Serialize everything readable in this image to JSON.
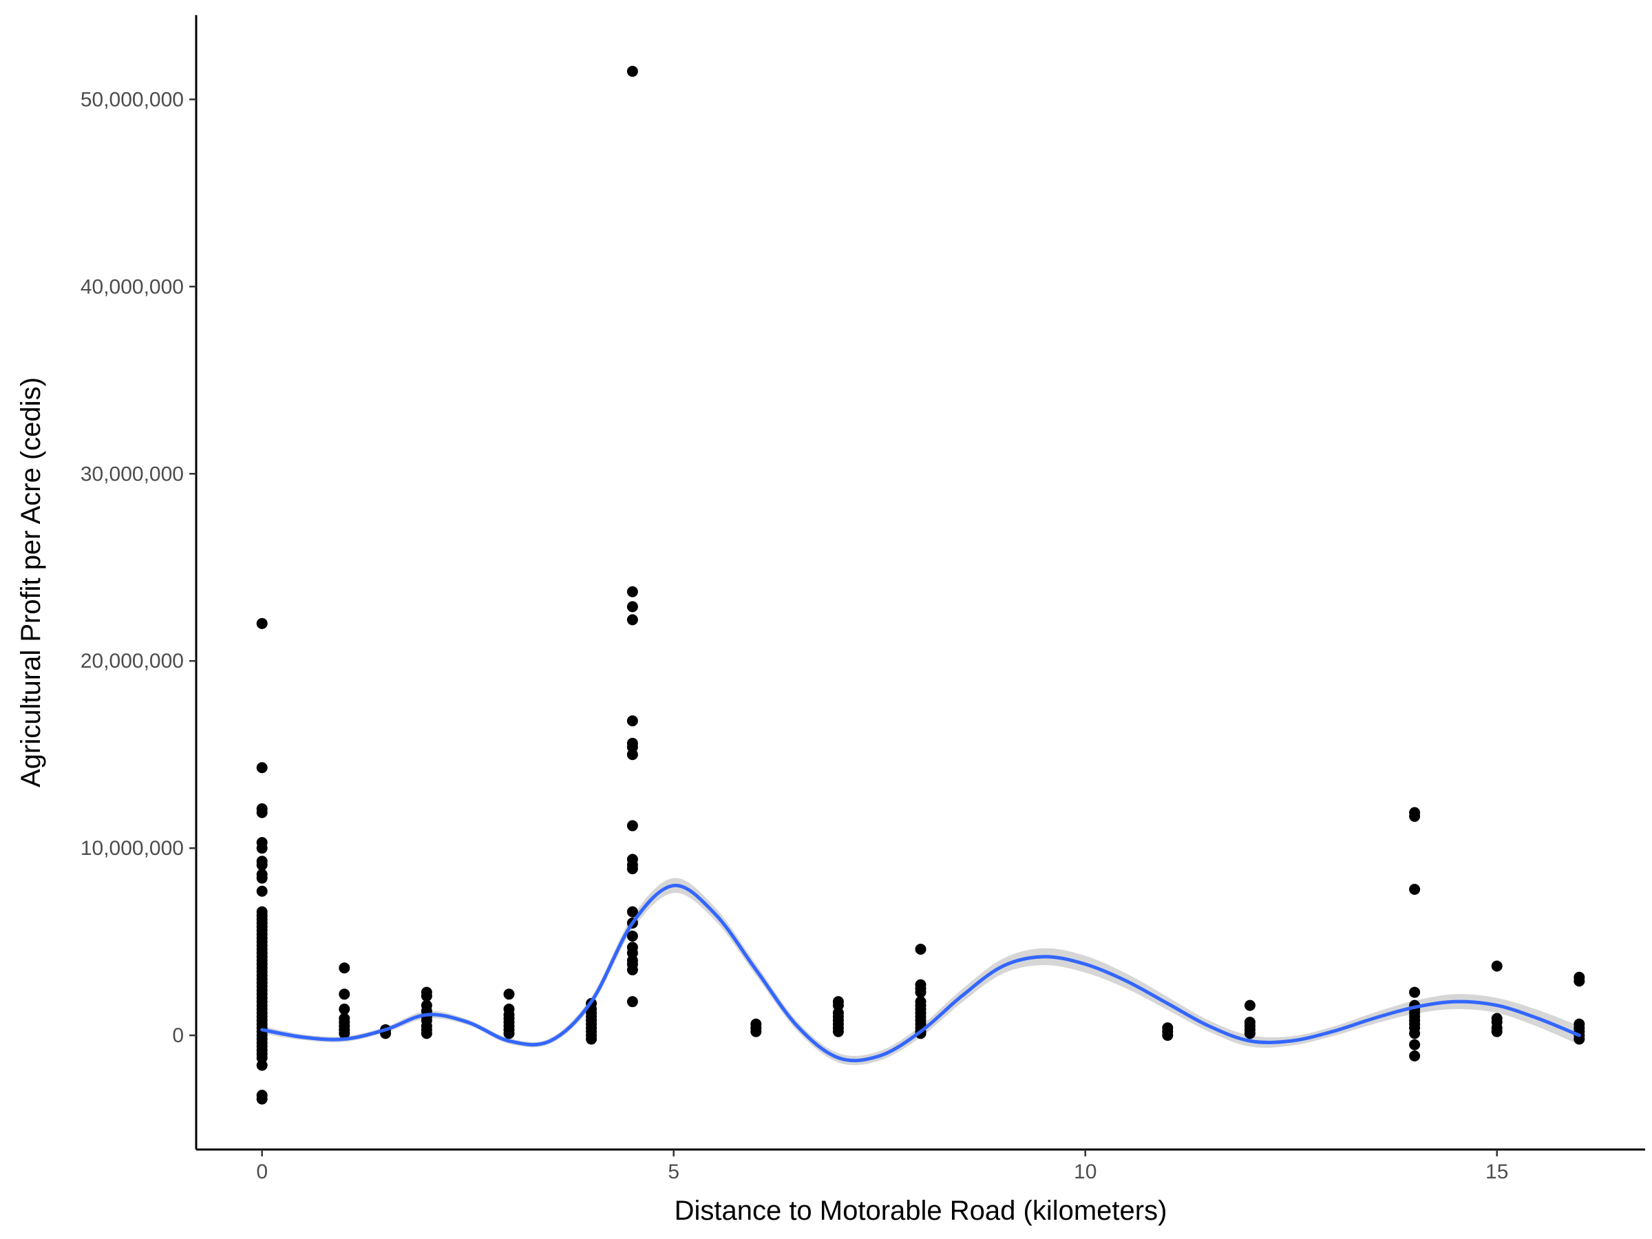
{
  "chart_data": {
    "type": "scatter",
    "title": "",
    "xlabel": "Distance to Motorable Road (kilometers)",
    "ylabel": "Agricultural Profit per Acre (cedis)",
    "xlim": [
      -0.8,
      16.8
    ],
    "ylim": [
      -6100000,
      54500000
    ],
    "x_ticks": [
      0,
      5,
      10,
      15
    ],
    "x_tick_labels": [
      "0",
      "5",
      "10",
      "15"
    ],
    "y_ticks": [
      0,
      10000000,
      20000000,
      30000000,
      40000000,
      50000000
    ],
    "y_tick_labels": [
      "0",
      "10,000,000",
      "20,000,000",
      "30,000,000",
      "40,000,000",
      "50,000,000"
    ],
    "grid": false,
    "legend": "none",
    "colors": {
      "points": "#000000",
      "smooth_line": "#3366ff",
      "confidence_band": "#999999"
    },
    "series": [
      {
        "kind": "points",
        "points": [
          [
            0,
            22000000
          ],
          [
            0,
            14300000
          ],
          [
            0,
            12100000
          ],
          [
            0,
            11900000
          ],
          [
            0,
            10300000
          ],
          [
            0,
            10000000
          ],
          [
            0,
            9300000
          ],
          [
            0,
            9100000
          ],
          [
            0,
            8600000
          ],
          [
            0,
            8400000
          ],
          [
            0,
            7700000
          ],
          [
            0,
            6600000
          ],
          [
            0,
            6400000
          ],
          [
            0,
            6200000
          ],
          [
            0,
            6000000
          ],
          [
            0,
            5800000
          ],
          [
            0,
            5600000
          ],
          [
            0,
            5400000
          ],
          [
            0,
            5200000
          ],
          [
            0,
            5000000
          ],
          [
            0,
            4800000
          ],
          [
            0,
            4600000
          ],
          [
            0,
            4400000
          ],
          [
            0,
            4200000
          ],
          [
            0,
            4000000
          ],
          [
            0,
            3800000
          ],
          [
            0,
            3600000
          ],
          [
            0,
            3400000
          ],
          [
            0,
            3200000
          ],
          [
            0,
            3000000
          ],
          [
            0,
            2800000
          ],
          [
            0,
            2600000
          ],
          [
            0,
            2400000
          ],
          [
            0,
            2200000
          ],
          [
            0,
            2000000
          ],
          [
            0,
            1800000
          ],
          [
            0,
            1600000
          ],
          [
            0,
            1400000
          ],
          [
            0,
            1200000
          ],
          [
            0,
            1000000
          ],
          [
            0,
            800000
          ],
          [
            0,
            600000
          ],
          [
            0,
            400000
          ],
          [
            0,
            200000
          ],
          [
            0,
            0
          ],
          [
            0,
            -200000
          ],
          [
            0,
            -400000
          ],
          [
            0,
            -600000
          ],
          [
            0,
            -800000
          ],
          [
            0,
            -1000000
          ],
          [
            0,
            -1200000
          ],
          [
            0,
            -1600000
          ],
          [
            0,
            -3200000
          ],
          [
            0,
            -3400000
          ],
          [
            1,
            3600000
          ],
          [
            1,
            2200000
          ],
          [
            1,
            1400000
          ],
          [
            1,
            900000
          ],
          [
            1,
            700000
          ],
          [
            1,
            500000
          ],
          [
            1,
            300000
          ],
          [
            1,
            100000
          ],
          [
            1.5,
            300000
          ],
          [
            1.5,
            100000
          ],
          [
            2,
            2300000
          ],
          [
            2,
            2100000
          ],
          [
            2,
            1600000
          ],
          [
            2,
            1300000
          ],
          [
            2,
            1000000
          ],
          [
            2,
            800000
          ],
          [
            2,
            500000
          ],
          [
            2,
            300000
          ],
          [
            2,
            100000
          ],
          [
            3,
            2200000
          ],
          [
            3,
            1400000
          ],
          [
            3,
            1100000
          ],
          [
            3,
            900000
          ],
          [
            3,
            700000
          ],
          [
            3,
            500000
          ],
          [
            3,
            300000
          ],
          [
            3,
            100000
          ],
          [
            4,
            1700000
          ],
          [
            4,
            1400000
          ],
          [
            4,
            1200000
          ],
          [
            4,
            1000000
          ],
          [
            4,
            800000
          ],
          [
            4,
            600000
          ],
          [
            4,
            400000
          ],
          [
            4,
            200000
          ],
          [
            4,
            0
          ],
          [
            4,
            -200000
          ],
          [
            4.5,
            51500000
          ],
          [
            4.5,
            23700000
          ],
          [
            4.5,
            22900000
          ],
          [
            4.5,
            22200000
          ],
          [
            4.5,
            16800000
          ],
          [
            4.5,
            15600000
          ],
          [
            4.5,
            15400000
          ],
          [
            4.5,
            15000000
          ],
          [
            4.5,
            11200000
          ],
          [
            4.5,
            9400000
          ],
          [
            4.5,
            9100000
          ],
          [
            4.5,
            8900000
          ],
          [
            4.5,
            6600000
          ],
          [
            4.5,
            6000000
          ],
          [
            4.5,
            5300000
          ],
          [
            4.5,
            4700000
          ],
          [
            4.5,
            4400000
          ],
          [
            4.5,
            4000000
          ],
          [
            4.5,
            3800000
          ],
          [
            4.5,
            3500000
          ],
          [
            4.5,
            1800000
          ],
          [
            6,
            600000
          ],
          [
            6,
            400000
          ],
          [
            6,
            200000
          ],
          [
            7,
            1800000
          ],
          [
            7,
            1600000
          ],
          [
            7,
            1200000
          ],
          [
            7,
            1000000
          ],
          [
            7,
            800000
          ],
          [
            7,
            600000
          ],
          [
            7,
            400000
          ],
          [
            7,
            200000
          ],
          [
            8,
            4600000
          ],
          [
            8,
            2700000
          ],
          [
            8,
            2500000
          ],
          [
            8,
            2300000
          ],
          [
            8,
            1800000
          ],
          [
            8,
            1600000
          ],
          [
            8,
            1400000
          ],
          [
            8,
            1200000
          ],
          [
            8,
            1000000
          ],
          [
            8,
            800000
          ],
          [
            8,
            600000
          ],
          [
            8,
            400000
          ],
          [
            8,
            200000
          ],
          [
            8,
            100000
          ],
          [
            11,
            400000
          ],
          [
            11,
            200000
          ],
          [
            11,
            0
          ],
          [
            12,
            1600000
          ],
          [
            12,
            700000
          ],
          [
            12,
            500000
          ],
          [
            12,
            300000
          ],
          [
            12,
            100000
          ],
          [
            14,
            11900000
          ],
          [
            14,
            11700000
          ],
          [
            14,
            7800000
          ],
          [
            14,
            2300000
          ],
          [
            14,
            1600000
          ],
          [
            14,
            1400000
          ],
          [
            14,
            1200000
          ],
          [
            14,
            1000000
          ],
          [
            14,
            800000
          ],
          [
            14,
            600000
          ],
          [
            14,
            400000
          ],
          [
            14,
            100000
          ],
          [
            14,
            -500000
          ],
          [
            14,
            -1100000
          ],
          [
            15,
            3700000
          ],
          [
            15,
            900000
          ],
          [
            15,
            700000
          ],
          [
            15,
            400000
          ],
          [
            15,
            200000
          ],
          [
            16,
            3100000
          ],
          [
            16,
            2900000
          ],
          [
            16,
            600000
          ],
          [
            16,
            400000
          ],
          [
            16,
            200000
          ],
          [
            16,
            0
          ],
          [
            16,
            -200000
          ]
        ]
      },
      {
        "kind": "loess_smooth",
        "x": [
          0,
          0.5,
          1,
          1.5,
          2,
          2.5,
          3,
          3.5,
          4,
          4.5,
          5,
          5.5,
          6,
          6.5,
          7,
          7.5,
          8,
          8.5,
          9,
          9.5,
          10,
          10.5,
          11,
          11.5,
          12,
          12.5,
          13,
          13.5,
          14,
          14.5,
          15,
          15.5,
          16
        ],
        "y": [
          300000,
          -100000,
          -200000,
          300000,
          1100000,
          700000,
          -300000,
          -300000,
          1800000,
          6000000,
          8000000,
          6500000,
          3500000,
          500000,
          -1200000,
          -1100000,
          200000,
          2100000,
          3700000,
          4200000,
          3800000,
          2900000,
          1700000,
          500000,
          -300000,
          -300000,
          200000,
          900000,
          1500000,
          1800000,
          1600000,
          900000,
          0
        ],
        "ci_halfwidth": [
          200000,
          150000,
          150000,
          150000,
          200000,
          150000,
          150000,
          150000,
          250000,
          350000,
          400000,
          350000,
          300000,
          250000,
          250000,
          250000,
          300000,
          350000,
          400000,
          450000,
          450000,
          400000,
          350000,
          300000,
          300000,
          250000,
          250000,
          300000,
          350000,
          400000,
          400000,
          450000,
          500000
        ]
      }
    ]
  }
}
